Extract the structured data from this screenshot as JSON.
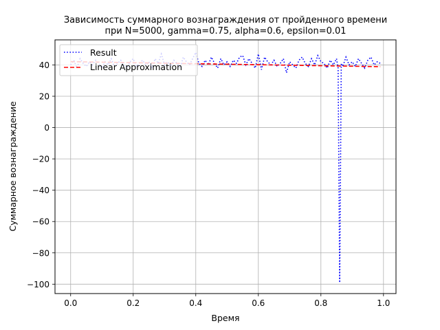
{
  "chart_data": {
    "type": "line",
    "title": "Зависимость суммарного вознаграждения от пройденного времени",
    "subtitle": "при N=5000, gamma=0.75, alpha=0.6, epsilon=0.01",
    "xlabel": "Время",
    "ylabel": "Суммарное вознаграждение",
    "xlim": [
      -0.05,
      1.04
    ],
    "ylim": [
      -106,
      56
    ],
    "xticks": [
      0.0,
      0.2,
      0.4,
      0.6,
      0.8,
      1.0
    ],
    "xtick_labels": [
      "0.0",
      "0.2",
      "0.4",
      "0.6",
      "0.8",
      "1.0"
    ],
    "yticks": [
      -100,
      -80,
      -60,
      -40,
      -20,
      0,
      20,
      40
    ],
    "ytick_labels": [
      "−100",
      "−80",
      "−60",
      "−40",
      "−20",
      "0",
      "20",
      "40"
    ],
    "grid": true,
    "legend_position": "upper-left",
    "series": [
      {
        "name": "Result",
        "color": "#0000ff",
        "style": "dotted",
        "x": [
          0.0,
          0.01,
          0.02,
          0.03,
          0.04,
          0.05,
          0.06,
          0.07,
          0.08,
          0.09,
          0.1,
          0.11,
          0.12,
          0.13,
          0.14,
          0.15,
          0.16,
          0.17,
          0.18,
          0.19,
          0.2,
          0.21,
          0.22,
          0.23,
          0.24,
          0.25,
          0.26,
          0.27,
          0.28,
          0.29,
          0.3,
          0.31,
          0.32,
          0.33,
          0.34,
          0.35,
          0.36,
          0.37,
          0.38,
          0.39,
          0.4,
          0.41,
          0.42,
          0.43,
          0.44,
          0.45,
          0.46,
          0.47,
          0.48,
          0.49,
          0.5,
          0.51,
          0.52,
          0.53,
          0.54,
          0.55,
          0.56,
          0.57,
          0.58,
          0.59,
          0.6,
          0.61,
          0.62,
          0.63,
          0.64,
          0.65,
          0.66,
          0.67,
          0.68,
          0.69,
          0.7,
          0.71,
          0.72,
          0.73,
          0.74,
          0.75,
          0.76,
          0.77,
          0.78,
          0.79,
          0.8,
          0.81,
          0.82,
          0.83,
          0.84,
          0.85,
          0.855,
          0.86,
          0.865,
          0.87,
          0.88,
          0.89,
          0.9,
          0.91,
          0.92,
          0.93,
          0.94,
          0.95,
          0.96,
          0.97,
          0.98,
          0.99
        ],
        "y": [
          40,
          43,
          38,
          44,
          41,
          39,
          42,
          40,
          43,
          41,
          38,
          42,
          40,
          44,
          39,
          41,
          43,
          40,
          38,
          42,
          44,
          39,
          41,
          43,
          40,
          42,
          38,
          44,
          41,
          47,
          40,
          42,
          39,
          43,
          41,
          38,
          45,
          42,
          40,
          44,
          48,
          41,
          39,
          43,
          40,
          45,
          41,
          38,
          44,
          40,
          42,
          39,
          43,
          41,
          45,
          46,
          40,
          44,
          41,
          38,
          47,
          37,
          45,
          42,
          40,
          43,
          39,
          41,
          44,
          35,
          42,
          40,
          38,
          43,
          45,
          41,
          39,
          44,
          40,
          46,
          42,
          41,
          38,
          43,
          40,
          44,
          38,
          -99,
          41,
          39,
          45,
          40,
          42,
          39,
          44,
          41,
          38,
          43,
          45,
          40,
          42,
          41
        ]
      },
      {
        "name": "Linear Approximation",
        "color": "#ff0000",
        "style": "dashed",
        "x": [
          0.0,
          0.99
        ],
        "y": [
          42.1,
          38.9
        ]
      }
    ]
  }
}
